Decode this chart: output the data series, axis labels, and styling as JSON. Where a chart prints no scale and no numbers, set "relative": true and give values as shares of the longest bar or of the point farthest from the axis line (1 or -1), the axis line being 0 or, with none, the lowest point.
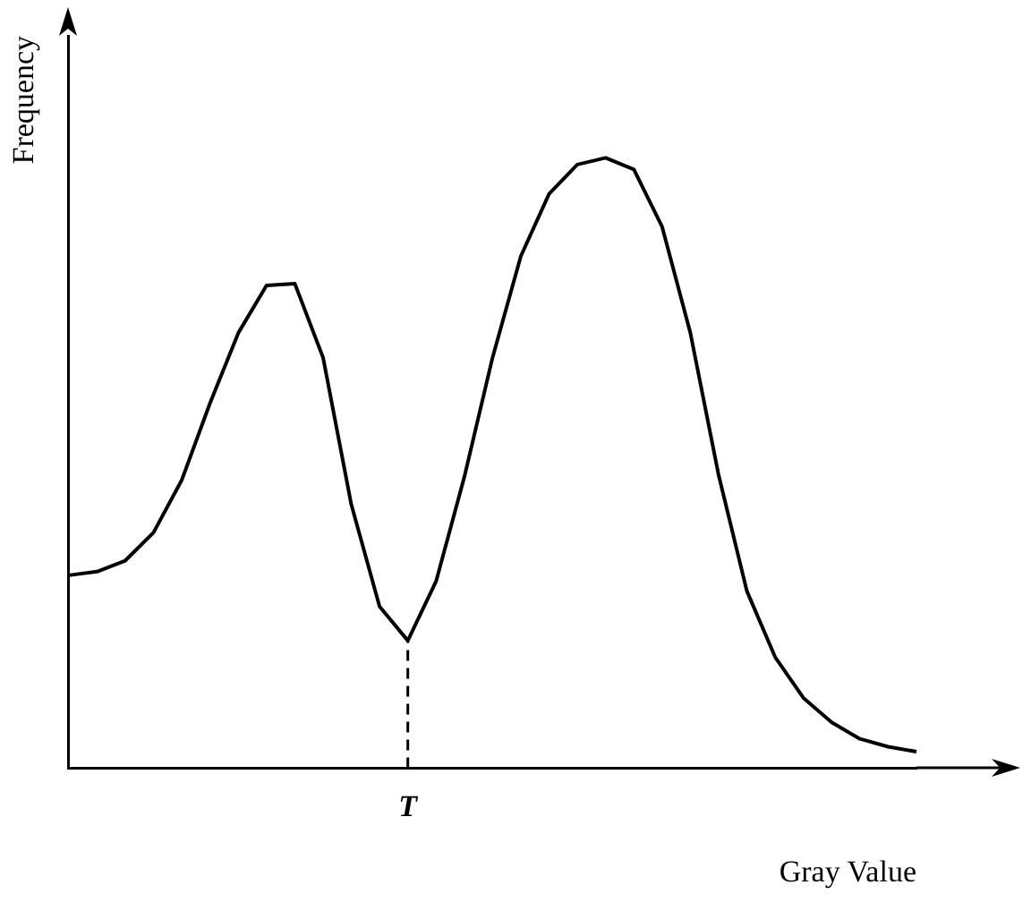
{
  "chart_data": {
    "type": "line",
    "relative": true,
    "xlabel": "Gray Value",
    "ylabel": "Frequency",
    "categories": [
      null,
      null,
      null,
      null,
      null,
      null,
      null,
      null,
      null,
      null,
      null,
      null,
      null,
      null,
      null,
      null,
      null,
      null,
      null,
      null,
      null,
      null,
      null,
      null,
      null,
      null,
      null,
      null,
      null,
      null,
      null
    ],
    "series": [
      {
        "color": "#000000",
        "values": [
          0.316,
          0.322,
          0.34,
          0.386,
          0.472,
          0.598,
          0.713,
          0.791,
          0.794,
          0.673,
          0.432,
          0.265,
          0.209,
          0.306,
          0.477,
          0.673,
          0.839,
          0.941,
          0.989,
          1,
          0.981,
          0.887,
          0.713,
          0.48,
          0.29,
          0.182,
          0.115,
          0.075,
          0.048,
          0.035,
          0.027
        ]
      }
    ],
    "ref_lines": [
      {
        "axis": "x",
        "label": "T",
        "line_style": "dashed",
        "color": "#000000"
      }
    ],
    "marker": "none",
    "line_style": "solid",
    "grid": false,
    "legend": false
  }
}
